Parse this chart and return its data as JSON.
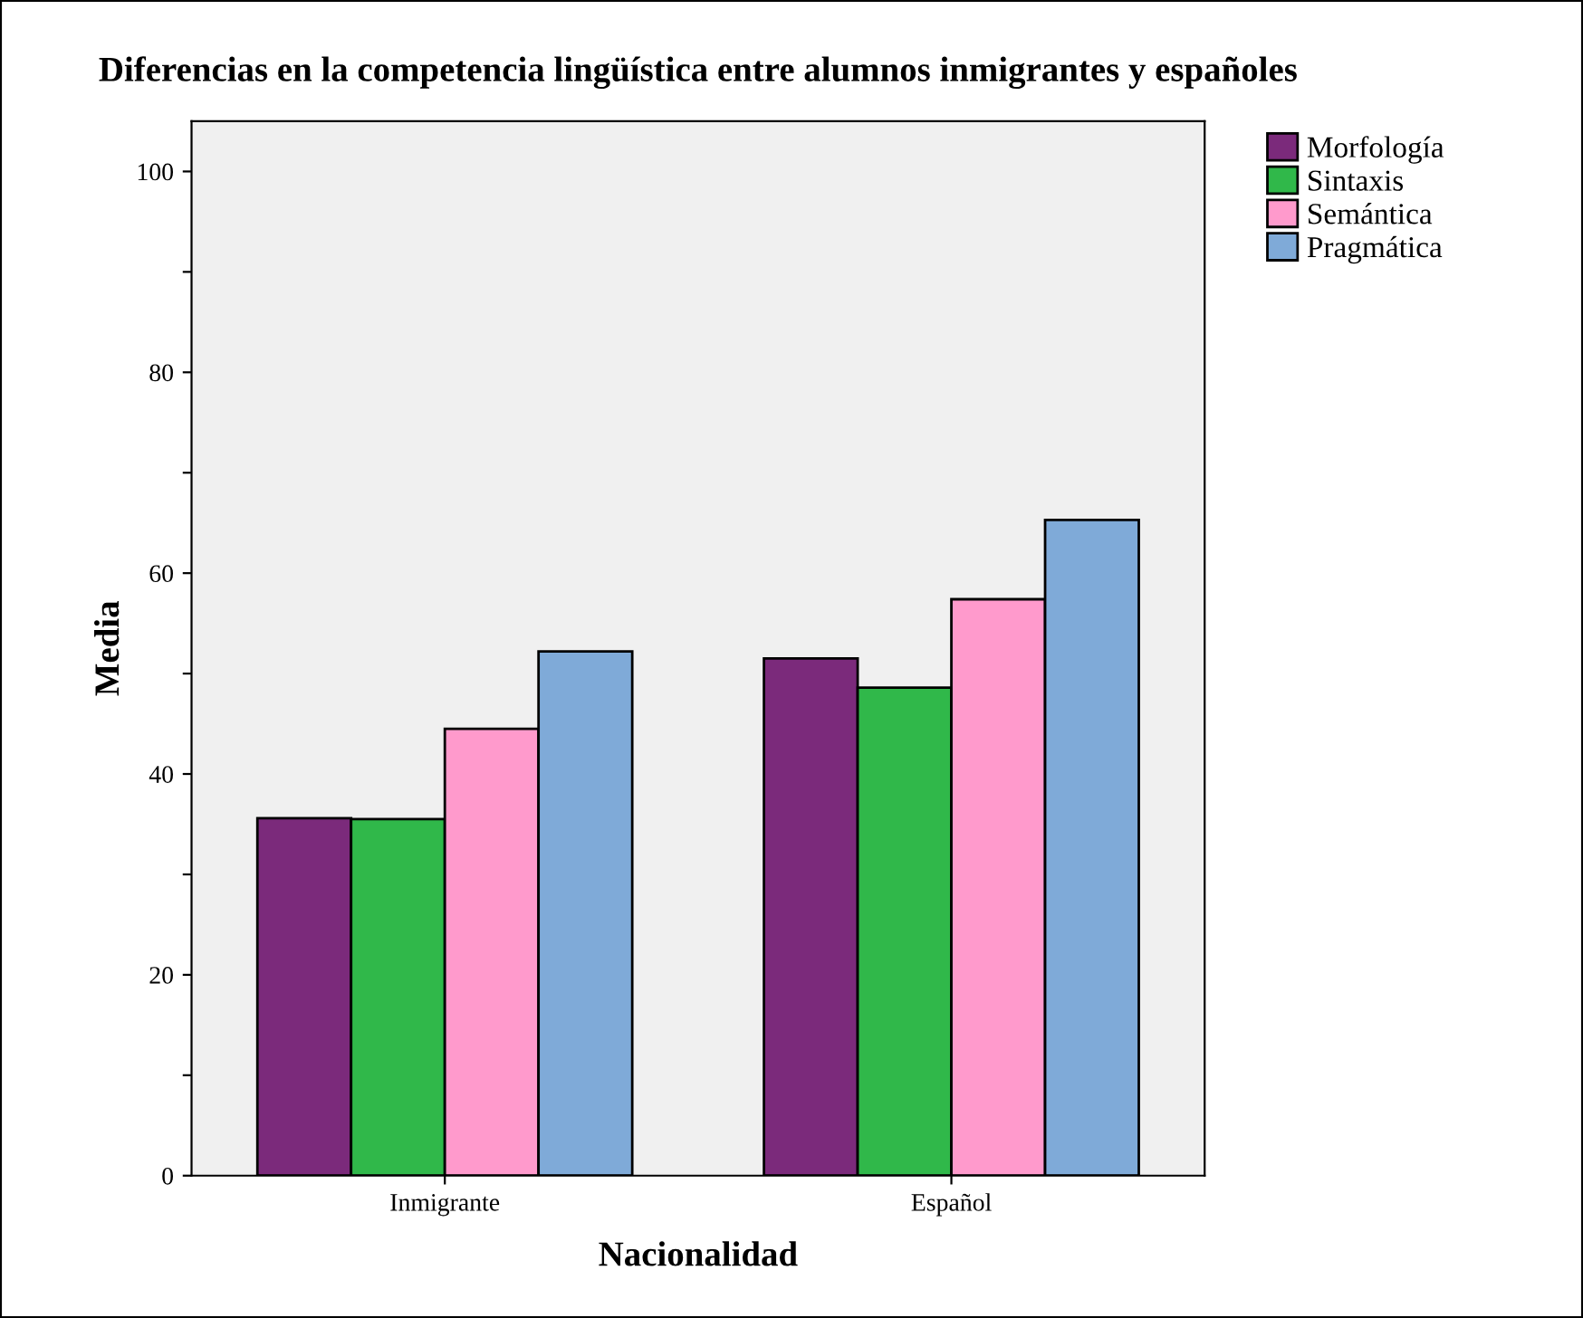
{
  "chart_data": {
    "type": "bar",
    "title": "Diferencias en la competencia lingüística entre alumnos inmigrantes y españoles",
    "xlabel": "Nacionalidad",
    "ylabel": "Media",
    "categories": [
      "Inmigrante",
      "Español"
    ],
    "series": [
      {
        "name": "Morfología",
        "color": "#7b2a7b",
        "values": [
          35.6,
          51.5
        ]
      },
      {
        "name": "Sintaxis",
        "color": "#30b84a",
        "values": [
          35.5,
          48.6
        ]
      },
      {
        "name": "Semántica",
        "color": "#ff9acc",
        "values": [
          44.5,
          57.4
        ]
      },
      {
        "name": "Pragmática",
        "color": "#7faad8",
        "values": [
          52.2,
          65.3
        ]
      }
    ],
    "ylim": [
      0,
      105
    ],
    "yticks": [
      0,
      {
        "value": 10,
        "label": null
      },
      20,
      {
        "value": 30,
        "label": null
      },
      40,
      {
        "value": 50,
        "label": null
      },
      60,
      {
        "value": 70,
        "label": null
      },
      80,
      {
        "value": 90,
        "label": null
      },
      100
    ],
    "grid": false,
    "legend": "top right"
  }
}
